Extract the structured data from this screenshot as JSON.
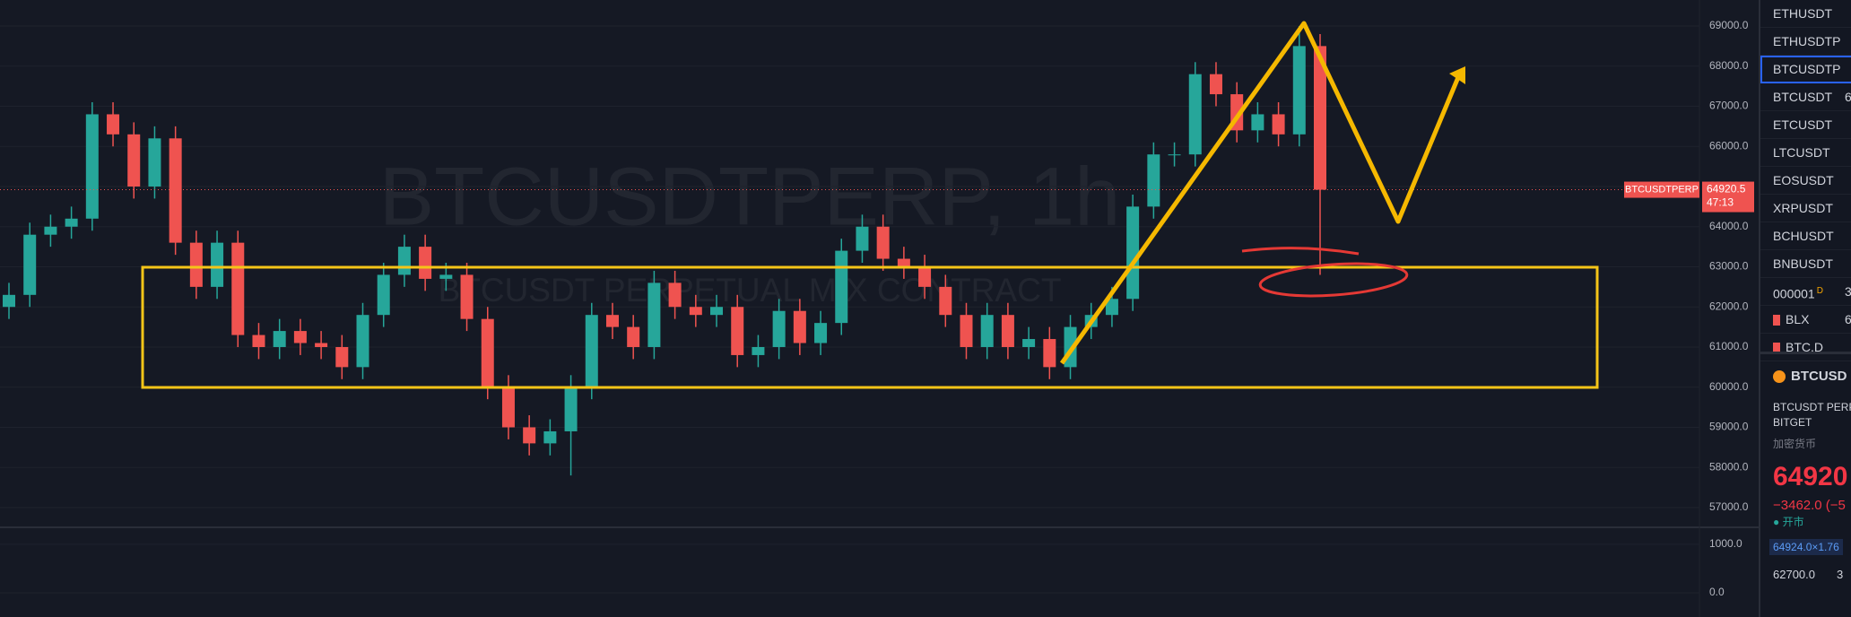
{
  "chart_data": {
    "type": "candlestick",
    "title": "BTCUSDTPERP, 1h",
    "subtitle": "BTCUSDT PERPETUAL MIX CONTRACT",
    "open": [
      62000,
      62300,
      63800,
      64000,
      64200,
      66800,
      66300,
      65000,
      66200,
      63600,
      62500,
      63600,
      61300,
      61000,
      61400,
      61100,
      61000,
      60500,
      61800,
      62800,
      63500,
      62700,
      62800,
      61700,
      60000,
      59000,
      58600,
      58900,
      60000,
      61800,
      61500,
      61000,
      62600,
      62000,
      61800,
      62000,
      60800,
      61000,
      61900,
      61100,
      61600,
      63400,
      64000,
      63200,
      63000,
      62500,
      61800,
      61000,
      61800,
      61000,
      61200,
      60500,
      61500,
      61800,
      62200,
      64500,
      65800,
      65800,
      67800,
      67300,
      66400,
      66800,
      66300,
      68500
    ],
    "high": [
      62600,
      64100,
      64300,
      64500,
      67100,
      67100,
      66600,
      66500,
      66500,
      63900,
      63900,
      63900,
      61600,
      61700,
      61700,
      61400,
      61300,
      62100,
      63100,
      63800,
      63800,
      63100,
      63100,
      62000,
      60300,
      59300,
      59200,
      60300,
      62100,
      62100,
      61800,
      62900,
      62900,
      62300,
      62300,
      62300,
      61300,
      62200,
      62200,
      61900,
      63700,
      64300,
      64300,
      63500,
      63300,
      62800,
      62100,
      62100,
      62100,
      61500,
      61500,
      61800,
      62100,
      62500,
      64800,
      66100,
      66100,
      68100,
      68100,
      67600,
      67100,
      67100,
      69000,
      68800
    ],
    "low": [
      61700,
      62000,
      63500,
      63700,
      63900,
      66000,
      64700,
      64700,
      63300,
      62200,
      62200,
      61000,
      60700,
      60700,
      60800,
      60700,
      60200,
      60200,
      61500,
      62500,
      62400,
      62400,
      61400,
      59700,
      58700,
      58300,
      58300,
      57800,
      59700,
      61200,
      60700,
      60700,
      61700,
      61500,
      61500,
      60500,
      60500,
      60700,
      60800,
      60800,
      61300,
      63100,
      62900,
      62700,
      62200,
      61500,
      60700,
      60700,
      60700,
      60700,
      60200,
      60200,
      61200,
      61500,
      61900,
      64200,
      65500,
      65500,
      67000,
      66100,
      66100,
      66000,
      66000,
      62800
    ],
    "close": [
      62300,
      63800,
      64000,
      64200,
      66800,
      66300,
      65000,
      66200,
      63600,
      62500,
      63600,
      61300,
      61000,
      61400,
      61100,
      61000,
      60500,
      61800,
      62800,
      63500,
      62700,
      62800,
      61700,
      60000,
      59000,
      58600,
      58900,
      60000,
      61800,
      61500,
      61000,
      62600,
      62000,
      61800,
      62000,
      60800,
      61000,
      61900,
      61100,
      61600,
      63400,
      64000,
      63200,
      63000,
      62500,
      61800,
      61000,
      61800,
      61000,
      61200,
      60500,
      61500,
      61800,
      62200,
      64500,
      65800,
      65800,
      67800,
      67300,
      66400,
      66800,
      66300,
      68500,
      64920.5
    ],
    "up_color": "#26a69a",
    "down_color": "#ef5350",
    "ylim": [
      56508,
      69648
    ],
    "yticks": [
      {
        "value": 57000,
        "label": "57000.0"
      },
      {
        "value": 58000,
        "label": "58000.0"
      },
      {
        "value": 59000,
        "label": "59000.0"
      },
      {
        "value": 60000,
        "label": "60000.0"
      },
      {
        "value": 61000,
        "label": "61000.0"
      },
      {
        "value": 62000,
        "label": "62000.0"
      },
      {
        "value": 63000,
        "label": "63000.0"
      },
      {
        "value": 64000,
        "label": "64000.0"
      },
      {
        "value": 65000,
        "label": "65000.0"
      },
      {
        "value": 66000,
        "label": "66000.0"
      },
      {
        "value": 67000,
        "label": "67000.0"
      },
      {
        "value": 68000,
        "label": "68000.0"
      },
      {
        "value": 69000,
        "label": "69000.0"
      }
    ],
    "grid": true,
    "last_price": {
      "value": 64920.5,
      "label": "64920.5"
    },
    "last_price_tag": "BTCUSDTPERP",
    "countdown": "47:13",
    "macd": {
      "ylim": [
        -500,
        1350
      ],
      "yticks": [
        {
          "value": 0,
          "label": "0.0"
        },
        {
          "value": 1000,
          "label": "1000.0"
        }
      ]
    }
  },
  "watchlist": [
    {
      "symbol": "ETHUSDT"
    },
    {
      "symbol": "ETHUSDTP"
    },
    {
      "symbol": "BTCUSDTP"
    },
    {
      "symbol": "BTCUSDT",
      "value": "6"
    },
    {
      "symbol": "ETCUSDT"
    },
    {
      "symbol": "LTCUSDT"
    },
    {
      "symbol": "EOSUSDT"
    },
    {
      "symbol": "XRPUSDT"
    },
    {
      "symbol": "BCHUSDT"
    },
    {
      "symbol": "BNBUSDT"
    },
    {
      "symbol": "000001",
      "badge": "D",
      "value": "3"
    },
    {
      "symbol": "BLX",
      "value": "6"
    },
    {
      "symbol": "BTC.D"
    }
  ],
  "details": {
    "symbol": "BTCUSD",
    "name": "BTCUSDT PERPE",
    "exchange": "BITGET",
    "category": "加密货币",
    "price": "64920",
    "change": "−3462.0 (−5",
    "status": "开市",
    "bid": "64924.0×1.76",
    "ask": "62700.0",
    "ask_qty": "3"
  }
}
